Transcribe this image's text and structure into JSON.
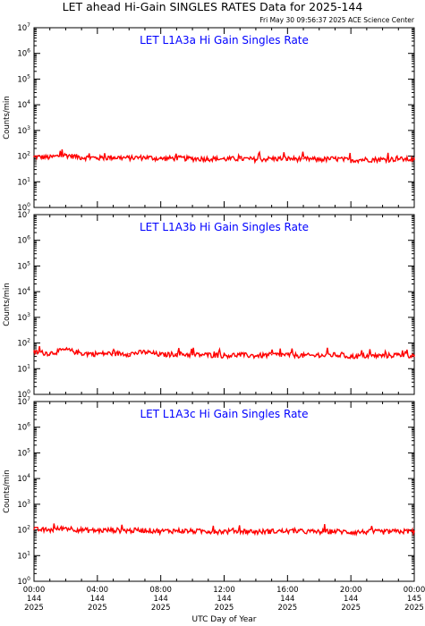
{
  "header": {
    "title": "LET ahead Hi-Gain SINGLES RATES Data for 2025-144",
    "timestamp": "Fri May 30 09:56:37 2025 ACE Science Center"
  },
  "axes": {
    "ylabel": "Counts/min",
    "xlabel": "UTC Day of Year"
  },
  "colors": {
    "series": "#ff0000",
    "panel_title": "#0000ff",
    "axis": "#000000"
  },
  "chart_data": [
    {
      "type": "line",
      "title": "LET L1A3a Hi Gain Singles Rate",
      "ylabel": "Counts/min",
      "y_scale": "log",
      "ylim": [
        1,
        10000000
      ],
      "xlim": [
        0,
        24
      ],
      "x_unit": "hours UTC, day 144 of 2025",
      "y_tick_exponents": [
        0,
        1,
        2,
        3,
        4,
        5,
        6,
        7
      ],
      "series": [
        {
          "x": [
            0,
            1,
            2,
            3,
            4,
            5,
            6,
            7,
            8,
            9,
            10,
            11,
            12,
            13,
            14,
            15,
            16,
            17,
            18,
            19,
            20,
            21,
            22,
            23,
            24
          ],
          "y": [
            95,
            90,
            110,
            90,
            85,
            90,
            85,
            90,
            80,
            85,
            80,
            80,
            78,
            80,
            75,
            80,
            80,
            78,
            75,
            80,
            70,
            75,
            75,
            78,
            75
          ]
        }
      ]
    },
    {
      "type": "line",
      "title": "LET L1A3b Hi Gain Singles Rate",
      "ylabel": "Counts/min",
      "y_scale": "log",
      "ylim": [
        1,
        10000000
      ],
      "xlim": [
        0,
        24
      ],
      "x_unit": "hours UTC, day 144 of 2025",
      "y_tick_exponents": [
        0,
        1,
        2,
        3,
        4,
        5,
        6,
        7
      ],
      "series": [
        {
          "x": [
            0,
            1,
            2,
            3,
            4,
            5,
            6,
            7,
            8,
            9,
            10,
            11,
            12,
            13,
            14,
            15,
            16,
            17,
            18,
            19,
            20,
            21,
            22,
            23,
            24
          ],
          "y": [
            45,
            40,
            55,
            40,
            38,
            40,
            38,
            45,
            35,
            38,
            35,
            35,
            33,
            35,
            32,
            35,
            35,
            33,
            32,
            35,
            30,
            32,
            32,
            35,
            33
          ]
        }
      ]
    },
    {
      "type": "line",
      "title": "LET L1A3c Hi Gain Singles Rate",
      "ylabel": "Counts/min",
      "y_scale": "log",
      "ylim": [
        1,
        10000000
      ],
      "xlim": [
        0,
        24
      ],
      "x_unit": "hours UTC, day 144 of 2025",
      "y_tick_exponents": [
        0,
        1,
        2,
        3,
        4,
        5,
        6,
        7
      ],
      "series": [
        {
          "x": [
            0,
            1,
            2,
            3,
            4,
            5,
            6,
            7,
            8,
            9,
            10,
            11,
            12,
            13,
            14,
            15,
            16,
            17,
            18,
            19,
            20,
            21,
            22,
            23,
            24
          ],
          "y": [
            105,
            100,
            120,
            100,
            95,
            100,
            95,
            100,
            90,
            95,
            90,
            90,
            88,
            92,
            85,
            90,
            90,
            88,
            85,
            90,
            82,
            85,
            85,
            88,
            90
          ]
        }
      ]
    }
  ],
  "x_ticks": [
    {
      "time": "00:00",
      "doy": "144",
      "year": "2025"
    },
    {
      "time": "04:00",
      "doy": "144",
      "year": "2025"
    },
    {
      "time": "08:00",
      "doy": "144",
      "year": "2025"
    },
    {
      "time": "12:00",
      "doy": "144",
      "year": "2025"
    },
    {
      "time": "16:00",
      "doy": "144",
      "year": "2025"
    },
    {
      "time": "20:00",
      "doy": "144",
      "year": "2025"
    },
    {
      "time": "00:00",
      "doy": "145",
      "year": "2025"
    }
  ]
}
